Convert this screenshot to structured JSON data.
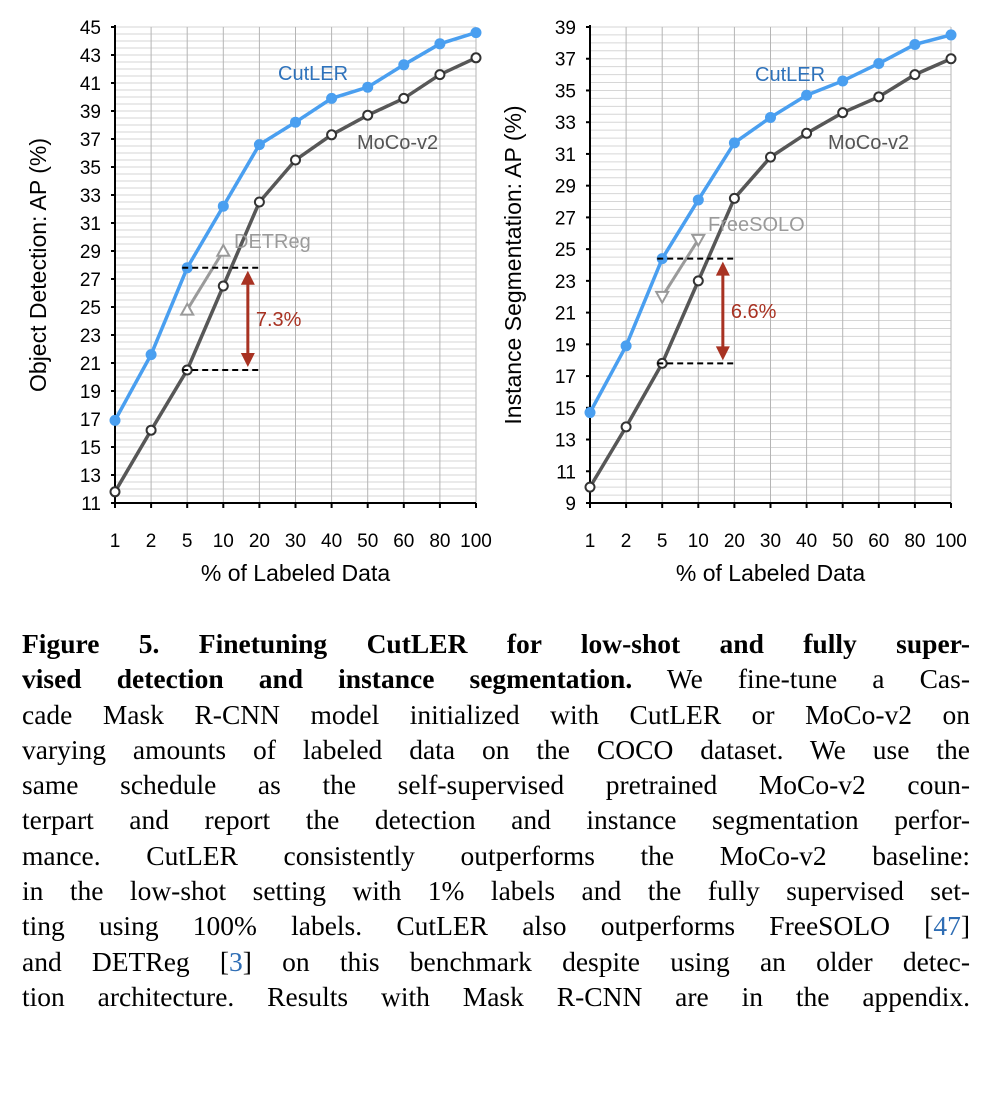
{
  "colors": {
    "cutler": "#4a9ff0",
    "moco": "#575757",
    "baseline": "#9a9a9a",
    "gap": "#a83222",
    "cutler_label": "#2e72bb"
  },
  "chart_data": [
    {
      "type": "line",
      "ylabel": "Object Detection: AP (%)",
      "xlabel": "% of Labeled Data",
      "categories": [
        "1",
        "2",
        "5",
        "10",
        "20",
        "30",
        "40",
        "50",
        "60",
        "80",
        "100"
      ],
      "ylim": [
        11,
        45
      ],
      "yticks": [
        "11",
        "13",
        "15",
        "17",
        "19",
        "21",
        "23",
        "25",
        "27",
        "29",
        "31",
        "33",
        "35",
        "37",
        "39",
        "41",
        "43",
        "45"
      ],
      "grid": true,
      "series": [
        {
          "name": "CutLER",
          "values": [
            16.9,
            21.6,
            27.8,
            32.2,
            36.6,
            38.2,
            39.9,
            40.7,
            42.3,
            43.8,
            44.6
          ]
        },
        {
          "name": "MoCo-v2",
          "values": [
            11.8,
            16.2,
            20.5,
            26.5,
            32.5,
            35.5,
            37.3,
            38.7,
            39.9,
            41.6,
            42.8
          ]
        },
        {
          "name": "DETReg",
          "x": [
            "5",
            "10"
          ],
          "values": [
            24.8,
            29.0
          ]
        }
      ],
      "annotation": {
        "text": "7.3%",
        "from": 20.5,
        "to": 27.8
      }
    },
    {
      "type": "line",
      "ylabel": "Instance Segmentation: AP (%)",
      "xlabel": "% of Labeled Data",
      "categories": [
        "1",
        "2",
        "5",
        "10",
        "20",
        "30",
        "40",
        "50",
        "60",
        "80",
        "100"
      ],
      "ylim": [
        9,
        39
      ],
      "yticks": [
        "9",
        "11",
        "13",
        "15",
        "17",
        "19",
        "21",
        "23",
        "25",
        "27",
        "29",
        "31",
        "33",
        "35",
        "37",
        "39"
      ],
      "grid": true,
      "series": [
        {
          "name": "CutLER",
          "values": [
            14.7,
            18.9,
            24.4,
            28.1,
            31.7,
            33.3,
            34.7,
            35.6,
            36.7,
            37.9,
            38.5
          ]
        },
        {
          "name": "MoCo-v2",
          "values": [
            10.0,
            13.8,
            17.8,
            23.0,
            28.2,
            30.8,
            32.3,
            33.6,
            34.6,
            36.0,
            37.0
          ]
        },
        {
          "name": "FreeSOLO",
          "x": [
            "5",
            "10"
          ],
          "values": [
            22.0,
            25.6
          ]
        }
      ],
      "annotation": {
        "text": "6.6%",
        "from": 17.8,
        "to": 24.4
      }
    }
  ],
  "caption": {
    "lines": [
      [
        {
          "t": "Figure 5.  Finetuning CutLER for low-shot and fully super-",
          "s": "b"
        }
      ],
      [
        {
          "t": "vised detection and instance segmentation.",
          "s": "b"
        },
        {
          "t": " We fine-tune a Cas-",
          "s": ""
        }
      ],
      [
        {
          "t": "cade Mask R-CNN model initialized with CutLER or MoCo-v2 on",
          "s": ""
        }
      ],
      [
        {
          "t": "varying amounts of labeled data on the COCO dataset. We use the",
          "s": ""
        }
      ],
      [
        {
          "t": "same schedule as the self-supervised pretrained MoCo-v2 coun-",
          "s": ""
        }
      ],
      [
        {
          "t": "terpart and report the detection and instance segmentation perfor-",
          "s": ""
        }
      ],
      [
        {
          "t": "mance. CutLER consistently outperforms the MoCo-v2 baseline:",
          "s": ""
        }
      ],
      [
        {
          "t": "in the low-shot setting with 1% labels and the fully supervised set-",
          "s": ""
        }
      ],
      [
        {
          "t": "ting using 100% labels. CutLER also outperforms FreeSOLO [",
          "s": ""
        },
        {
          "t": "47",
          "s": "r"
        },
        {
          "t": "]",
          "s": ""
        }
      ],
      [
        {
          "t": "and DETReg [",
          "s": ""
        },
        {
          "t": "3",
          "s": "r"
        },
        {
          "t": "] on this benchmark despite using an older detec-",
          "s": ""
        }
      ],
      [
        {
          "t": "tion architecture. Results with Mask R-CNN are in the appendix.",
          "s": ""
        }
      ]
    ]
  }
}
